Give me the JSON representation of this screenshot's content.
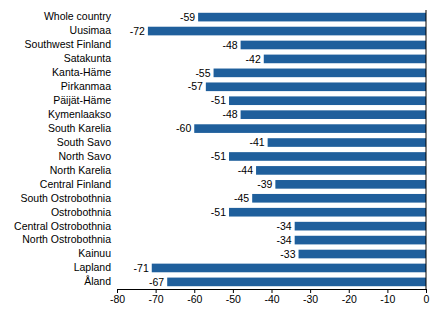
{
  "chart_data": {
    "type": "bar",
    "orientation": "horizontal",
    "data_labels": true,
    "grid": false,
    "categories": [
      "Whole country",
      "Uusimaa",
      "Southwest Finland",
      "Satakunta",
      "Kanta-Häme",
      "Pirkanmaa",
      "Päijät-Häme",
      "Kymenlaakso",
      "South Karelia",
      "South Savo",
      "North Savo",
      "North Karelia",
      "Central Finland",
      "South Ostrobothnia",
      "Ostrobothnia",
      "Central Ostrobothnia",
      "North Ostrobothnia",
      "Kainuu",
      "Lapland",
      "Åland"
    ],
    "values": [
      -59,
      -72,
      -48,
      -42,
      -55,
      -57,
      -51,
      -48,
      -60,
      -41,
      -51,
      -44,
      -39,
      -45,
      -51,
      -34,
      -34,
      -33,
      -71,
      -67
    ],
    "color": "#1f5f9c",
    "xlim": [
      -80,
      0
    ],
    "xticks": [
      -80,
      -70,
      -60,
      -50,
      -40,
      -30,
      -20,
      -10,
      0
    ]
  }
}
